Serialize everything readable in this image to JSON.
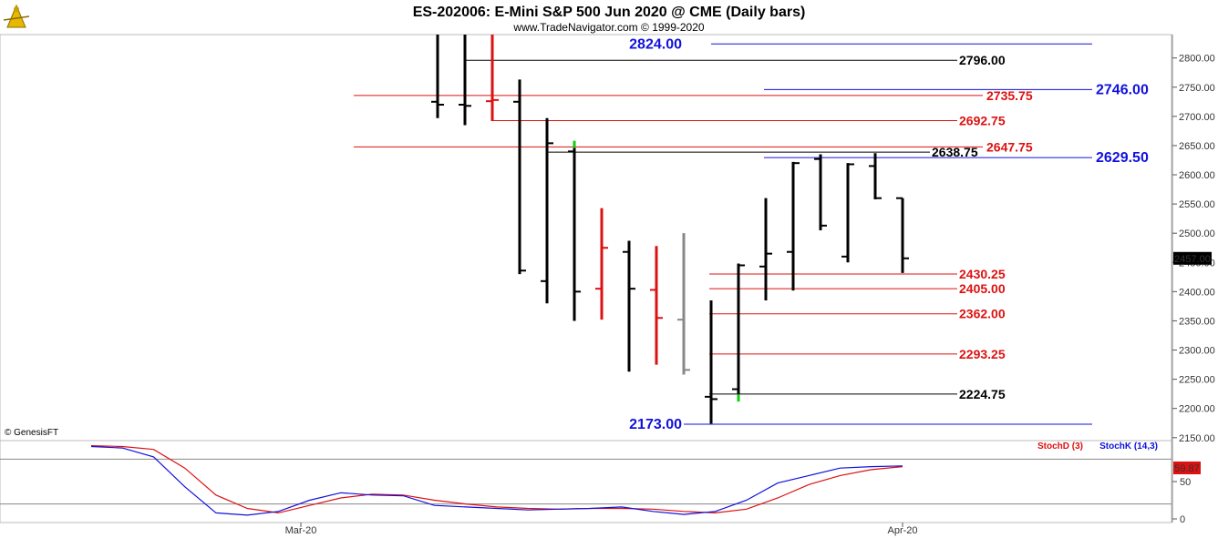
{
  "title": "ES-202006:  E-Mini S&P 500 Jun 2020 @ CME  (Daily bars)",
  "subtitle": "www.TradeNavigator.com © 1999-2020",
  "watermark": "© GenesisFT",
  "colors": {
    "black": "#000000",
    "red": "#dd1111",
    "blue": "#1111dd",
    "gray": "#888888",
    "green": "#11cc11"
  },
  "chart_data": {
    "type": "bar",
    "subtype": "ohlc",
    "ylim": [
      2145,
      2840
    ],
    "y_ticks": [
      "2150.00",
      "2200.00",
      "2250.00",
      "2300.00",
      "2350.00",
      "2400.00",
      "2450.00",
      "2500.00",
      "2550.00",
      "2600.00",
      "2650.00",
      "2700.00",
      "2750.00",
      "2800.00"
    ],
    "x_labels": [
      {
        "label": "Mar-20",
        "bar_index": 8
      },
      {
        "label": "Apr-20",
        "bar_index": 30
      }
    ],
    "last_price": "2457.00",
    "bars": [
      {
        "o": 2725,
        "h": 2840,
        "l": 2697,
        "c": 2720,
        "color": "black"
      },
      {
        "o": 2720,
        "h": 2840,
        "l": 2685,
        "c": 2718,
        "color": "black"
      },
      {
        "o": 2726,
        "h": 2840,
        "l": 2692,
        "c": 2728,
        "color": "red"
      },
      {
        "o": 2725,
        "h": 2763,
        "l": 2430,
        "c": 2436,
        "color": "black"
      },
      {
        "o": 2418,
        "h": 2697,
        "l": 2380,
        "c": 2654,
        "color": "black"
      },
      {
        "o": 2640,
        "h": 2652,
        "l": 2350,
        "c": 2400,
        "color": "black"
      },
      {
        "o": 2405,
        "h": 2543,
        "l": 2352,
        "c": 2475,
        "color": "red"
      },
      {
        "o": 2468,
        "h": 2487,
        "l": 2263,
        "c": 2405,
        "color": "black"
      },
      {
        "o": 2403,
        "h": 2478,
        "l": 2275,
        "c": 2355,
        "color": "red"
      },
      {
        "o": 2352,
        "h": 2500,
        "l": 2258,
        "c": 2266,
        "color": "gray"
      },
      {
        "o": 2220,
        "h": 2385,
        "l": 2174,
        "c": 2216,
        "color": "black"
      },
      {
        "o": 2233,
        "h": 2448,
        "l": 2218,
        "c": 2445,
        "color": "black"
      },
      {
        "o": 2443,
        "h": 2560,
        "l": 2385,
        "c": 2465,
        "color": "black"
      },
      {
        "o": 2468,
        "h": 2622,
        "l": 2402,
        "c": 2620,
        "color": "black"
      },
      {
        "o": 2627,
        "h": 2635,
        "l": 2505,
        "c": 2513,
        "color": "black"
      },
      {
        "o": 2460,
        "h": 2620,
        "l": 2450,
        "c": 2618,
        "color": "black"
      },
      {
        "o": 2615,
        "h": 2637,
        "l": 2558,
        "c": 2560,
        "color": "black"
      },
      {
        "o": 2560,
        "h": 2560,
        "l": 2432,
        "c": 2457,
        "color": "black"
      }
    ],
    "levels": [
      {
        "value": 2824.0,
        "label": "2824.00",
        "color": "blue",
        "size": 16
      },
      {
        "value": 2796.0,
        "label": "2796.00",
        "color": "black",
        "size": 14
      },
      {
        "value": 2746.0,
        "label": "2746.00",
        "color": "blue",
        "size": 16
      },
      {
        "value": 2735.75,
        "label": "2735.75",
        "color": "red",
        "size": 14
      },
      {
        "value": 2692.75,
        "label": "2692.75",
        "color": "red",
        "size": 14
      },
      {
        "value": 2647.75,
        "label": "2647.75",
        "color": "red",
        "size": 14
      },
      {
        "value": 2638.75,
        "label": "2638.75",
        "color": "black",
        "size": 14
      },
      {
        "value": 2629.5,
        "label": "2629.50",
        "color": "blue",
        "size": 16
      },
      {
        "value": 2430.25,
        "label": "2430.25",
        "color": "red",
        "size": 14
      },
      {
        "value": 2405.0,
        "label": "2405.00",
        "color": "red",
        "size": 14
      },
      {
        "value": 2362.0,
        "label": "2362.00",
        "color": "red",
        "size": 14
      },
      {
        "value": 2293.25,
        "label": "2293.25",
        "color": "red",
        "size": 14
      },
      {
        "value": 2224.75,
        "label": "2224.75",
        "color": "black",
        "size": 14
      },
      {
        "value": 2173.0,
        "label": "2173.00",
        "color": "blue",
        "size": 16
      }
    ],
    "stochastic": {
      "legend_d": "StochD (3)",
      "legend_k": "StochK (14,3)",
      "ylim": [
        0,
        100
      ],
      "y_ticks": [
        "0",
        "50"
      ],
      "reference_lines": [
        20,
        80
      ],
      "last_value": "59.87",
      "k": [
        97,
        95,
        83,
        43,
        8,
        5,
        10,
        25,
        35,
        32,
        31,
        18,
        16,
        14,
        12,
        13,
        14,
        16,
        10,
        6,
        10,
        25,
        48,
        58,
        68,
        70,
        71
      ],
      "d": [
        98,
        97,
        93,
        68,
        32,
        14,
        8,
        18,
        28,
        33,
        32,
        25,
        20,
        16,
        14,
        13,
        14,
        14,
        13,
        10,
        8,
        13,
        28,
        46,
        58,
        66,
        70
      ]
    }
  }
}
